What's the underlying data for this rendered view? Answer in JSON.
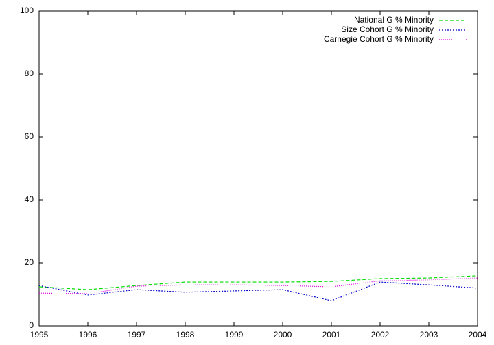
{
  "chart_data": {
    "type": "line",
    "x": [
      1995,
      1996,
      1997,
      1998,
      1999,
      2000,
      2001,
      2002,
      2003,
      2004
    ],
    "xlim": [
      1995,
      2004
    ],
    "xticks": [
      1995,
      1996,
      1997,
      1998,
      1999,
      2000,
      2001,
      2002,
      2003,
      2004
    ],
    "ylim": [
      0,
      100
    ],
    "yticks": [
      0,
      20,
      40,
      60,
      80,
      100
    ],
    "legend": "top-right",
    "series": [
      {
        "name": "National G % Minority",
        "color": "#00dd00",
        "dash": "dashed",
        "values": [
          12.4,
          11.5,
          12.8,
          13.9,
          13.9,
          13.9,
          14.1,
          15.0,
          15.2,
          15.9
        ]
      },
      {
        "name": "Size Cohort G % Minority",
        "color": "#0000cc",
        "dash": "dotted",
        "values": [
          12.8,
          9.8,
          11.5,
          10.7,
          11.1,
          11.5,
          8.0,
          13.9,
          13.0,
          12.0
        ]
      },
      {
        "name": "Carnegie Cohort G % Minority",
        "color": "#dd00dd",
        "dash": "fine-dotted",
        "values": [
          10.4,
          10.2,
          12.6,
          13.0,
          13.0,
          12.8,
          12.4,
          14.3,
          14.6,
          15.2
        ]
      }
    ]
  }
}
